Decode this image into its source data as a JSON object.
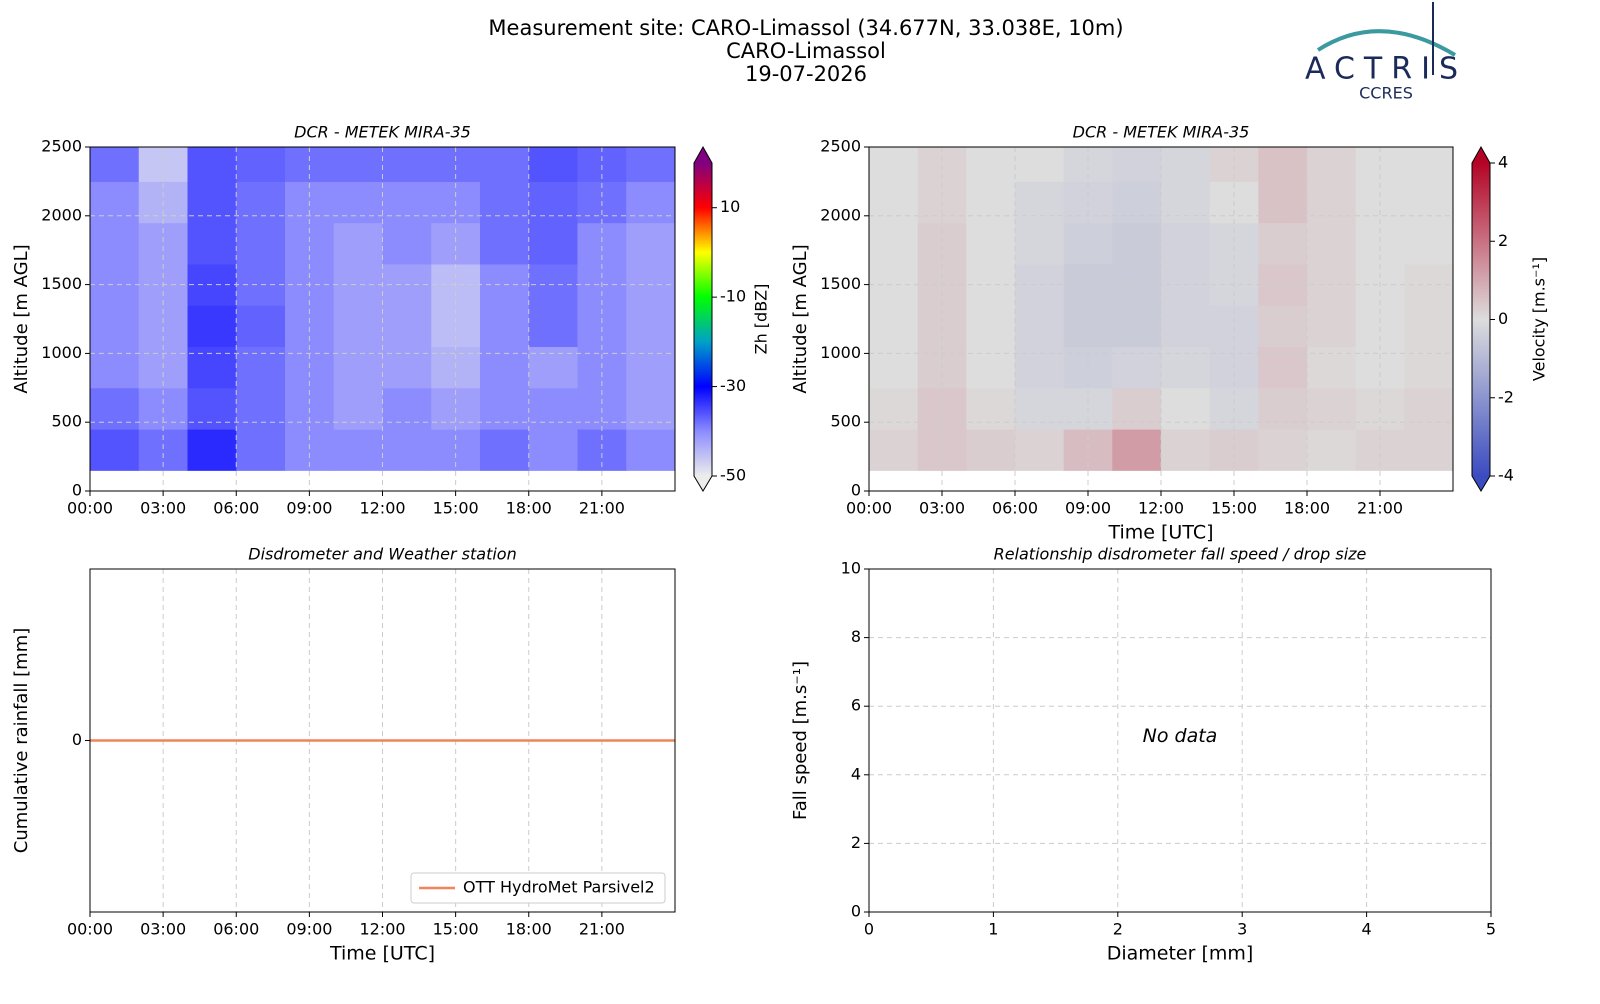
{
  "header": {
    "title_lines": [
      "Measurement site: CARO-Limassol (34.677N, 33.038E, 10m)",
      "CARO-Limassol",
      "19-07-2026"
    ],
    "logo": {
      "name": "ACTRIS",
      "subtitle": "CCRES"
    }
  },
  "chart_data": [
    {
      "type": "heatmap",
      "title": "DCR - METEK MIRA-35",
      "ylabel": "Altitude [m AGL]",
      "colorbar_label": "Zh [dBZ]",
      "xlim": [
        0,
        24
      ],
      "xticks": [
        {
          "value": 0,
          "label": "00:00"
        },
        {
          "value": 3,
          "label": "03:00"
        },
        {
          "value": 6,
          "label": "06:00"
        },
        {
          "value": 9,
          "label": "09:00"
        },
        {
          "value": 12,
          "label": "12:00"
        },
        {
          "value": 15,
          "label": "15:00"
        },
        {
          "value": 18,
          "label": "18:00"
        },
        {
          "value": 21,
          "label": "21:00"
        }
      ],
      "ylim": [
        0,
        2500
      ],
      "yticks": [
        0,
        500,
        1000,
        1500,
        2000,
        2500
      ],
      "grid": true,
      "x_edges": [
        0,
        2,
        4,
        6,
        8,
        10,
        12,
        14,
        16,
        18,
        20,
        22,
        24
      ],
      "y_edges": [
        150,
        450,
        750,
        1050,
        1350,
        1650,
        1950,
        2250,
        2500
      ],
      "values": [
        [
          -36,
          -38,
          -33,
          -38,
          -40,
          -40,
          -40,
          -40,
          -38,
          -40,
          -38,
          -40
        ],
        [
          -38,
          -40,
          -36,
          -38,
          -40,
          -42,
          -40,
          -42,
          -40,
          -40,
          -40,
          -42
        ],
        [
          -40,
          -42,
          -35,
          -38,
          -40,
          -42,
          -42,
          -44,
          -40,
          -42,
          -40,
          -42
        ],
        [
          -40,
          -42,
          -34,
          -37,
          -40,
          -42,
          -42,
          -45,
          -40,
          -38,
          -40,
          -42
        ],
        [
          -40,
          -42,
          -35,
          -38,
          -40,
          -42,
          -42,
          -45,
          -40,
          -38,
          -40,
          -42
        ],
        [
          -40,
          -42,
          -36,
          -38,
          -40,
          -42,
          -40,
          -42,
          -38,
          -37,
          -40,
          -42
        ],
        [
          -40,
          -44,
          -36,
          -38,
          -40,
          -40,
          -40,
          -40,
          -38,
          -37,
          -38,
          -40
        ],
        [
          -38,
          -46,
          -36,
          -37,
          -38,
          -38,
          -38,
          -38,
          -38,
          -36,
          -37,
          -38
        ]
      ],
      "clim": [
        -50,
        20
      ],
      "cticks": [
        -50,
        -30,
        -10,
        10
      ],
      "colormap": [
        "#ececec",
        "#8c8cff",
        "#0000ff",
        "#00a0c8",
        "#00ff00",
        "#ffff00",
        "#ff0000",
        "#800080"
      ]
    },
    {
      "type": "heatmap",
      "title": "DCR - METEK MIRA-35",
      "ylabel": "Altitude [m AGL]",
      "xlabel": "Time [UTC]",
      "colorbar_label": "Velocity [m.s⁻¹]",
      "xlim": [
        0,
        24
      ],
      "xticks": [
        {
          "value": 0,
          "label": "00:00"
        },
        {
          "value": 3,
          "label": "03:00"
        },
        {
          "value": 6,
          "label": "06:00"
        },
        {
          "value": 9,
          "label": "09:00"
        },
        {
          "value": 12,
          "label": "12:00"
        },
        {
          "value": 15,
          "label": "15:00"
        },
        {
          "value": 18,
          "label": "18:00"
        },
        {
          "value": 21,
          "label": "21:00"
        }
      ],
      "ylim": [
        0,
        2500
      ],
      "yticks": [
        0,
        500,
        1000,
        1500,
        2000,
        2500
      ],
      "grid": true,
      "x_edges": [
        0,
        2,
        4,
        6,
        8,
        10,
        12,
        14,
        16,
        18,
        20,
        22,
        24
      ],
      "y_edges": [
        150,
        450,
        750,
        1050,
        1350,
        1650,
        1950,
        2250,
        2500
      ],
      "values": [
        [
          0.2,
          0.4,
          0.3,
          0.2,
          0.6,
          1.2,
          0.2,
          0.3,
          0.2,
          0.1,
          0.2,
          0.2
        ],
        [
          0.1,
          0.4,
          0.1,
          -0.2,
          -0.2,
          0.3,
          0,
          -0.2,
          0.3,
          0.2,
          0.1,
          0.2
        ],
        [
          0,
          0.3,
          0,
          -0.3,
          -0.4,
          -0.3,
          -0.2,
          -0.3,
          0.4,
          0.1,
          0,
          0.1
        ],
        [
          0,
          0.3,
          0,
          -0.3,
          -0.5,
          -0.5,
          -0.3,
          -0.3,
          0.3,
          0.2,
          0,
          0.1
        ],
        [
          0,
          0.3,
          0,
          -0.3,
          -0.5,
          -0.5,
          -0.3,
          -0.2,
          0.4,
          0.2,
          0,
          0.1
        ],
        [
          0,
          0.3,
          0,
          -0.2,
          -0.4,
          -0.5,
          -0.3,
          -0.2,
          0.3,
          0.2,
          0,
          0
        ],
        [
          0,
          0.2,
          0,
          -0.2,
          -0.3,
          -0.4,
          -0.2,
          0,
          0.5,
          0.2,
          0,
          0
        ],
        [
          0,
          0.2,
          0,
          0,
          -0.2,
          -0.3,
          -0.2,
          0.2,
          0.5,
          0.2,
          0,
          0
        ]
      ],
      "clim": [
        -4,
        4
      ],
      "cticks": [
        -4,
        -2,
        0,
        2,
        4
      ],
      "colormap": [
        "#3b4cc0",
        "#dddddd",
        "#b40426"
      ]
    },
    {
      "type": "line",
      "title": "Disdrometer and Weather station",
      "ylabel": "Cumulative rainfall [mm]",
      "xlabel": "Time [UTC]",
      "xlim": [
        0,
        24
      ],
      "xticks": [
        {
          "value": 0,
          "label": "00:00"
        },
        {
          "value": 3,
          "label": "03:00"
        },
        {
          "value": 6,
          "label": "06:00"
        },
        {
          "value": 9,
          "label": "09:00"
        },
        {
          "value": 12,
          "label": "12:00"
        },
        {
          "value": 15,
          "label": "15:00"
        },
        {
          "value": 18,
          "label": "18:00"
        },
        {
          "value": 21,
          "label": "21:00"
        }
      ],
      "ylim": [
        -1,
        1
      ],
      "yticks": [
        0
      ],
      "grid": true,
      "legend": "lower-right",
      "x": [
        0,
        24
      ],
      "series": [
        {
          "name": "OTT HydroMet Parsivel2",
          "color": "#f0845a",
          "values": [
            0,
            0
          ]
        }
      ]
    },
    {
      "type": "scatter",
      "title": "Relationship disdrometer fall speed / drop size",
      "ylabel": "Fall speed [m.s⁻¹]",
      "xlabel": "Diameter [mm]",
      "xlim": [
        0,
        5
      ],
      "xticks": [
        0,
        1,
        2,
        3,
        4,
        5
      ],
      "ylim": [
        0,
        10
      ],
      "yticks": [
        0,
        2,
        4,
        6,
        8,
        10
      ],
      "grid": true,
      "annotation": "No data",
      "series": []
    }
  ]
}
